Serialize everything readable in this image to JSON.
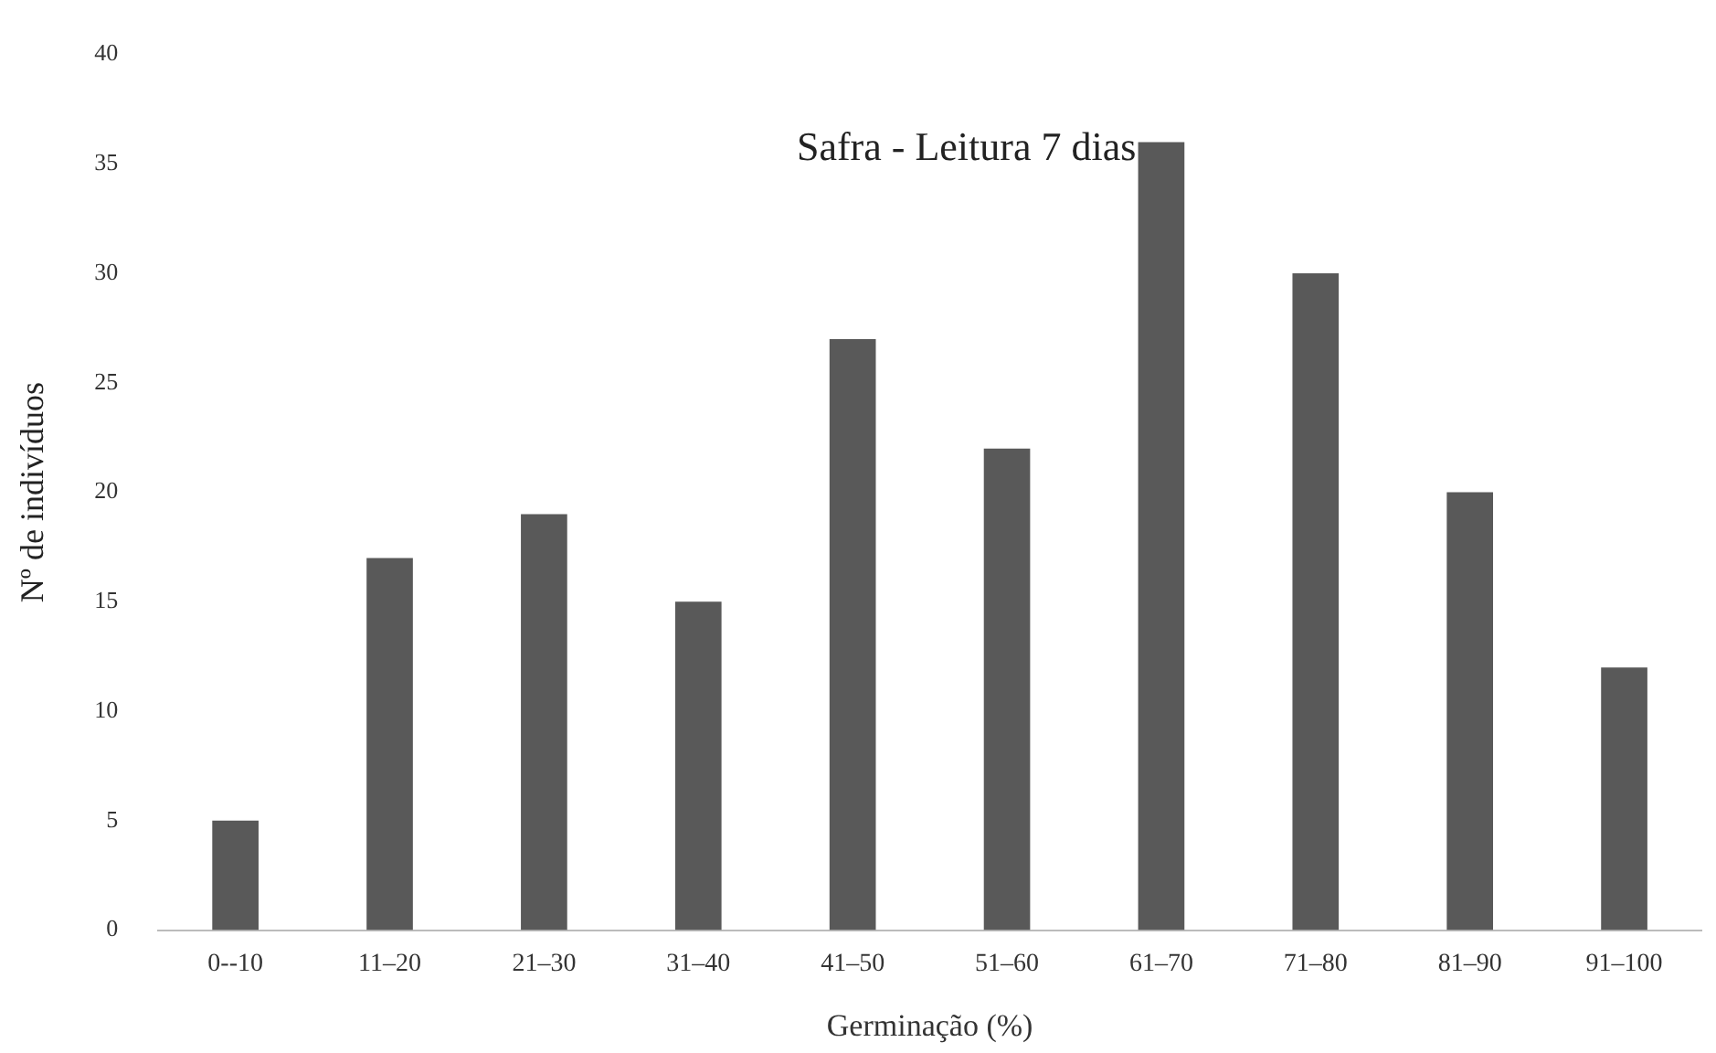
{
  "chart_data": {
    "type": "bar",
    "title": "Safra - Leitura 7 dias",
    "xlabel": "Germinação (%)",
    "ylabel": "Nº de indivíduos",
    "categories": [
      "0--10",
      "11–20",
      "21–30",
      "31–40",
      "41–50",
      "51–60",
      "61–70",
      "71–80",
      "81–90",
      "91–100"
    ],
    "values": [
      5,
      17,
      19,
      15,
      27,
      22,
      36,
      30,
      20,
      12
    ],
    "color": "#595959",
    "ylim": [
      0,
      40
    ],
    "yticks": [
      0,
      5,
      10,
      15,
      20,
      25,
      30,
      35,
      40
    ],
    "grid": false,
    "legend": false
  }
}
